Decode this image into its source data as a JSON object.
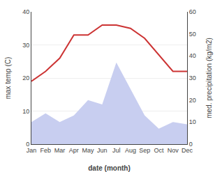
{
  "chart_data": {
    "type": "line",
    "xlabel": "date (month)",
    "ylabel": "max temp (C)",
    "y2label": "med. precipitation (kg/m2)",
    "categories": [
      "Jan",
      "Feb",
      "Mar",
      "Apr",
      "May",
      "Jun",
      "Jul",
      "Aug",
      "Sep",
      "Oct",
      "Nov",
      "Dec"
    ],
    "series": [
      {
        "type": "line",
        "color": "#cc3333",
        "values": [
          19,
          22,
          26,
          33,
          33,
          36,
          36,
          35,
          32,
          27,
          22,
          22
        ]
      },
      {
        "type": "area",
        "axis": "y2",
        "color": "#c8cef0",
        "values": [
          10,
          14,
          10,
          13,
          20,
          18,
          37,
          25,
          13,
          7,
          10,
          9
        ]
      }
    ],
    "ylim": [
      0,
      40
    ],
    "yticks": [
      0,
      10,
      20,
      30,
      40
    ],
    "y2lim": [
      0,
      60
    ],
    "y2ticks": [
      0,
      10,
      20,
      30,
      40,
      50,
      60
    ],
    "grid": true
  }
}
